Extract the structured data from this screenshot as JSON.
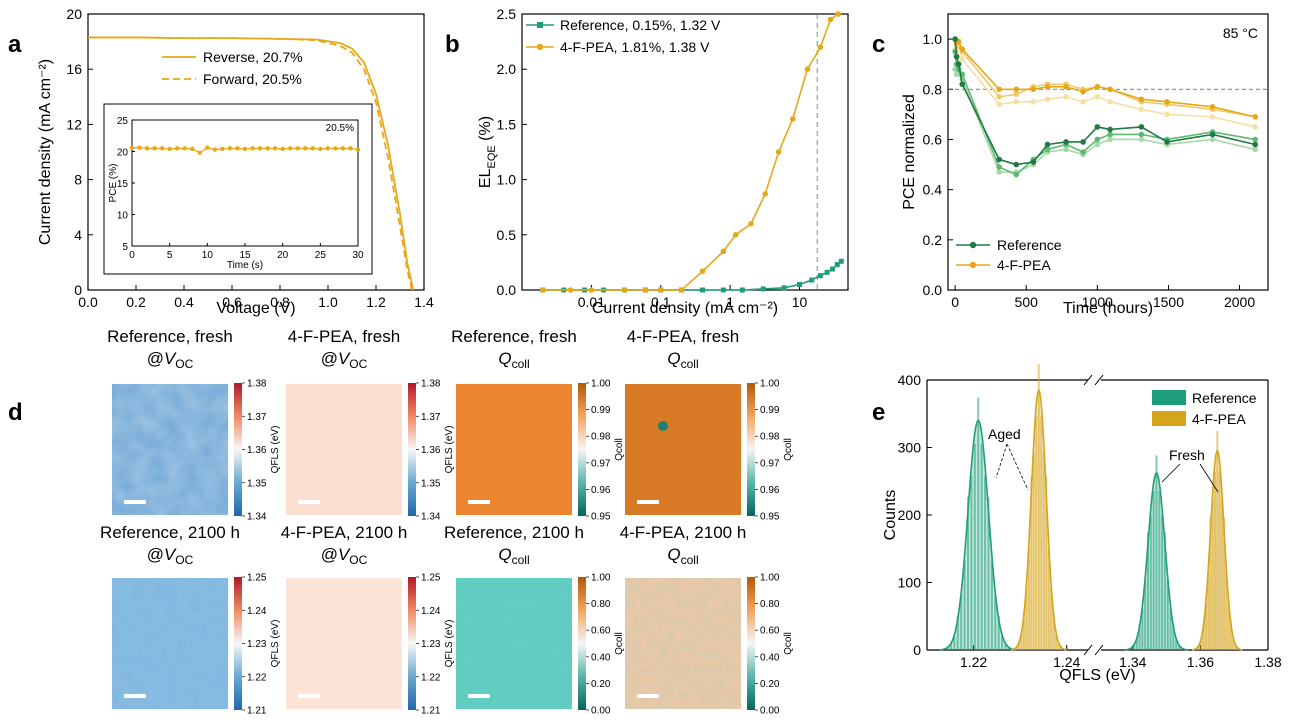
{
  "panels": {
    "a": "a",
    "b": "b",
    "c": "c",
    "d": "d",
    "e": "e"
  },
  "colors": {
    "gold": "#E6A817",
    "gold_light": "#F0C96A",
    "gold_pale": "#F6DFA5",
    "green": "#1F7A45",
    "green_mid": "#5DBA6E",
    "green_pale": "#A8D8A8",
    "teal": "#1E9E7A",
    "hist_teal": "#1E9E7A",
    "hist_gold": "#D6A51E"
  },
  "chart_data": [
    {
      "id": "a",
      "type": "line",
      "xlabel": "Voltage (V)",
      "ylabel": "Current density (mA cm⁻²)",
      "xlim": [
        0,
        1.4
      ],
      "ylim": [
        0,
        20
      ],
      "xticks": [
        "0.0",
        "0.2",
        "0.4",
        "0.6",
        "0.8",
        "1.0",
        "1.2",
        "1.4"
      ],
      "yticks": [
        "0",
        "4",
        "8",
        "12",
        "16",
        "20"
      ],
      "series": [
        {
          "name": "Reverse, 20.7%",
          "style": "solid",
          "x": [
            0,
            0.2,
            0.4,
            0.6,
            0.8,
            0.95,
            1.05,
            1.1,
            1.15,
            1.2,
            1.25,
            1.3,
            1.33,
            1.355
          ],
          "y": [
            18.3,
            18.3,
            18.25,
            18.25,
            18.2,
            18.15,
            17.9,
            17.5,
            16.5,
            14.2,
            10.5,
            5.5,
            2.0,
            0
          ]
        },
        {
          "name": "Forward, 20.5%",
          "style": "dashed",
          "x": [
            0,
            0.2,
            0.4,
            0.6,
            0.8,
            0.95,
            1.05,
            1.1,
            1.15,
            1.2,
            1.25,
            1.3,
            1.33,
            1.35
          ],
          "y": [
            18.3,
            18.3,
            18.25,
            18.25,
            18.2,
            18.1,
            17.7,
            17.2,
            16.0,
            13.6,
            9.6,
            4.6,
            1.5,
            0
          ]
        }
      ],
      "inset": {
        "xlabel": "Time (s)",
        "ylabel": "PCE (%)",
        "xlim": [
          0,
          30
        ],
        "ylim": [
          5,
          25
        ],
        "xticks": [
          "0",
          "5",
          "10",
          "15",
          "20",
          "25",
          "30"
        ],
        "yticks": [
          "5",
          "10",
          "15",
          "20",
          "25"
        ],
        "annotation": "20.5%",
        "x": [
          0,
          1,
          2,
          3,
          4,
          5,
          6,
          7,
          8,
          9,
          10,
          11,
          12,
          13,
          14,
          15,
          16,
          17,
          18,
          19,
          20,
          21,
          22,
          23,
          24,
          25,
          26,
          27,
          28,
          29,
          30
        ],
        "y": [
          20.6,
          20.6,
          20.5,
          20.5,
          20.5,
          20.4,
          20.5,
          20.5,
          20.4,
          19.8,
          20.6,
          20.3,
          20.4,
          20.5,
          20.5,
          20.4,
          20.5,
          20.5,
          20.5,
          20.5,
          20.4,
          20.5,
          20.5,
          20.5,
          20.5,
          20.4,
          20.5,
          20.5,
          20.5,
          20.5,
          20.3
        ]
      }
    },
    {
      "id": "b",
      "type": "line",
      "xlabel": "Current density (mA cm⁻²)",
      "ylabel": "EL",
      "ylabel_sub": "EQE",
      "ylabel_unit": " (%)",
      "xscale": "log",
      "xlim": [
        0.001,
        50
      ],
      "ylim": [
        0,
        2.5
      ],
      "xticks": [
        0.01,
        0.1,
        1,
        10
      ],
      "xtick_labels": [
        "0.01",
        "0.1",
        "1",
        "10"
      ],
      "yticks": [
        "0.0",
        "0.5",
        "1.0",
        "1.5",
        "2.0",
        "2.5"
      ],
      "vline": 18,
      "series": [
        {
          "name": "Reference, 0.15%, 1.32 V",
          "marker": "square",
          "x": [
            0.002,
            0.004,
            0.008,
            0.015,
            0.03,
            0.06,
            0.1,
            0.2,
            0.4,
            0.8,
            1.5,
            3,
            6,
            10,
            15,
            20,
            25,
            30,
            35,
            40
          ],
          "y": [
            0,
            0,
            0,
            0,
            0,
            0,
            0,
            0,
            0,
            0,
            0,
            0.01,
            0.02,
            0.05,
            0.09,
            0.13,
            0.16,
            0.19,
            0.23,
            0.26
          ]
        },
        {
          "name": "4-F-PEA, 1.81%, 1.38 V",
          "marker": "circle",
          "x": [
            0.002,
            0.005,
            0.01,
            0.03,
            0.06,
            0.1,
            0.2,
            0.4,
            0.8,
            1.2,
            2,
            3.2,
            5,
            8,
            13,
            20,
            28,
            36
          ],
          "y": [
            0,
            0,
            0,
            0,
            0,
            0,
            0,
            0.17,
            0.35,
            0.5,
            0.6,
            0.87,
            1.25,
            1.55,
            2.0,
            2.2,
            2.45,
            2.5
          ]
        }
      ]
    },
    {
      "id": "c",
      "type": "line",
      "xlabel": "Time (hours)",
      "ylabel": "PCE normalized",
      "annotation": "85 °C",
      "xlim": [
        -50,
        2200
      ],
      "ylim": [
        0,
        1.1
      ],
      "xticks": [
        "0",
        "500",
        "1000",
        "1500",
        "2000"
      ],
      "yticks": [
        "0.0",
        "0.2",
        "0.4",
        "0.6",
        "0.8",
        "1.0"
      ],
      "hline": 0.8,
      "series": [
        {
          "name": "Reference",
          "tone": "green",
          "x": [
            0,
            10,
            25,
            50,
            310,
            430,
            550,
            650,
            780,
            900,
            1000,
            1090,
            1310,
            1490,
            1810,
            2110
          ],
          "y": [
            1.0,
            0.93,
            0.9,
            0.82,
            0.52,
            0.5,
            0.51,
            0.58,
            0.59,
            0.59,
            0.65,
            0.64,
            0.65,
            0.59,
            0.62,
            0.58
          ]
        },
        {
          "name": "",
          "tone": "green_mid",
          "x": [
            0,
            10,
            25,
            50,
            310,
            430,
            550,
            650,
            780,
            900,
            1000,
            1090,
            1310,
            1490,
            1810,
            2110
          ],
          "y": [
            0.95,
            0.9,
            0.88,
            0.86,
            0.49,
            0.46,
            0.52,
            0.56,
            0.58,
            0.55,
            0.6,
            0.62,
            0.62,
            0.6,
            0.63,
            0.6
          ]
        },
        {
          "name": "",
          "tone": "green_pale",
          "x": [
            0,
            10,
            25,
            50,
            310,
            430,
            550,
            650,
            780,
            900,
            1000,
            1090,
            1310,
            1490,
            1810,
            2110
          ],
          "y": [
            0.88,
            0.86,
            0.86,
            0.84,
            0.47,
            0.47,
            0.5,
            0.55,
            0.56,
            0.54,
            0.58,
            0.6,
            0.6,
            0.58,
            0.6,
            0.56
          ]
        },
        {
          "name": "4-F-PEA",
          "tone": "gold",
          "x": [
            0,
            10,
            25,
            50,
            310,
            430,
            550,
            650,
            780,
            900,
            1000,
            1090,
            1310,
            1490,
            1810,
            2110
          ],
          "y": [
            1.0,
            0.99,
            0.99,
            0.96,
            0.8,
            0.8,
            0.8,
            0.81,
            0.81,
            0.79,
            0.81,
            0.8,
            0.76,
            0.75,
            0.73,
            0.69
          ]
        },
        {
          "name": "",
          "tone": "gold_light",
          "x": [
            0,
            10,
            25,
            50,
            310,
            430,
            550,
            650,
            780,
            900,
            1000,
            1090,
            1310,
            1490,
            1810,
            2110
          ],
          "y": [
            1.0,
            0.98,
            0.97,
            0.95,
            0.77,
            0.78,
            0.81,
            0.82,
            0.82,
            0.8,
            0.81,
            0.8,
            0.75,
            0.74,
            0.72,
            0.69
          ]
        },
        {
          "name": "",
          "tone": "gold_pale",
          "x": [
            0,
            10,
            25,
            50,
            310,
            430,
            550,
            650,
            780,
            900,
            1000,
            1090,
            1310,
            1490,
            1810,
            2110
          ],
          "y": [
            0.96,
            0.94,
            0.93,
            0.92,
            0.74,
            0.75,
            0.75,
            0.76,
            0.77,
            0.75,
            0.77,
            0.75,
            0.72,
            0.7,
            0.69,
            0.65
          ]
        }
      ]
    },
    {
      "id": "e",
      "type": "bar",
      "xlabel": "QFLS (eV)",
      "ylabel": "Counts",
      "ylim": [
        0,
        400
      ],
      "yticks": [
        "0",
        "100",
        "200",
        "300",
        "400"
      ],
      "xticks_left": [
        "1.22",
        "1.24"
      ],
      "xticks_right": [
        "1.34",
        "1.36",
        "1.38"
      ],
      "annotations": [
        "Aged",
        "Fresh"
      ],
      "series": [
        {
          "name": "Reference",
          "tone": "hist_teal",
          "peaks": [
            {
              "center": 1.221,
              "height": 340,
              "sigma": 0.0022
            },
            {
              "center": 1.347,
              "height": 262,
              "sigma": 0.0025
            }
          ]
        },
        {
          "name": "4-F-PEA",
          "tone": "hist_gold",
          "peaks": [
            {
              "center": 1.234,
              "height": 385,
              "sigma": 0.0016
            },
            {
              "center": 1.365,
              "height": 295,
              "sigma": 0.002
            }
          ]
        }
      ]
    }
  ],
  "maps": {
    "row1": [
      {
        "title": "Reference, fresh",
        "sub_prefix": "@",
        "sub_main": "V",
        "sub_index": "OC",
        "cb_label": "QFLS (eV)",
        "cb_ticks": [
          "1.38",
          "1.37",
          "1.36",
          "1.35",
          "1.34"
        ]
      },
      {
        "title": "4-F-PEA, fresh",
        "sub_prefix": "@",
        "sub_main": "V",
        "sub_index": "OC",
        "cb_label": "QFLS (eV)",
        "cb_ticks": [
          "1.38",
          "1.37",
          "1.36",
          "1.35",
          "1.34"
        ]
      },
      {
        "title": "Reference, fresh",
        "sub_prefix": "",
        "sub_main": "Q",
        "sub_index": "coll",
        "cb_label": "Qcoll",
        "cb_ticks": [
          "1.00",
          "0.99",
          "0.98",
          "0.97",
          "0.96",
          "0.95"
        ]
      },
      {
        "title": "4-F-PEA, fresh",
        "sub_prefix": "",
        "sub_main": "Q",
        "sub_index": "coll",
        "cb_label": "Qcoll",
        "cb_ticks": [
          "1.00",
          "0.99",
          "0.98",
          "0.97",
          "0.96",
          "0.95"
        ]
      }
    ],
    "row2": [
      {
        "title": "Reference, 2100 h",
        "sub_prefix": "@",
        "sub_main": "V",
        "sub_index": "OC",
        "cb_label": "QFLS (eV)",
        "cb_ticks": [
          "1.25",
          "1.24",
          "1.23",
          "1.22",
          "1.21"
        ]
      },
      {
        "title": "4-F-PEA, 2100 h",
        "sub_prefix": "@",
        "sub_main": "V",
        "sub_index": "OC",
        "cb_label": "QFLS (eV)",
        "cb_ticks": [
          "1.25",
          "1.24",
          "1.23",
          "1.22",
          "1.21"
        ]
      },
      {
        "title": "Reference, 2100 h",
        "sub_prefix": "",
        "sub_main": "Q",
        "sub_index": "coll",
        "cb_label": "Qcoll",
        "cb_ticks": [
          "1.00",
          "0.80",
          "0.60",
          "0.40",
          "0.20",
          "0.00"
        ]
      },
      {
        "title": "4-F-PEA, 2100 h",
        "sub_prefix": "",
        "sub_main": "Q",
        "sub_index": "coll",
        "cb_label": "Qcoll",
        "cb_ticks": [
          "1.00",
          "0.80",
          "0.60",
          "0.40",
          "0.20",
          "0.00"
        ]
      }
    ]
  }
}
